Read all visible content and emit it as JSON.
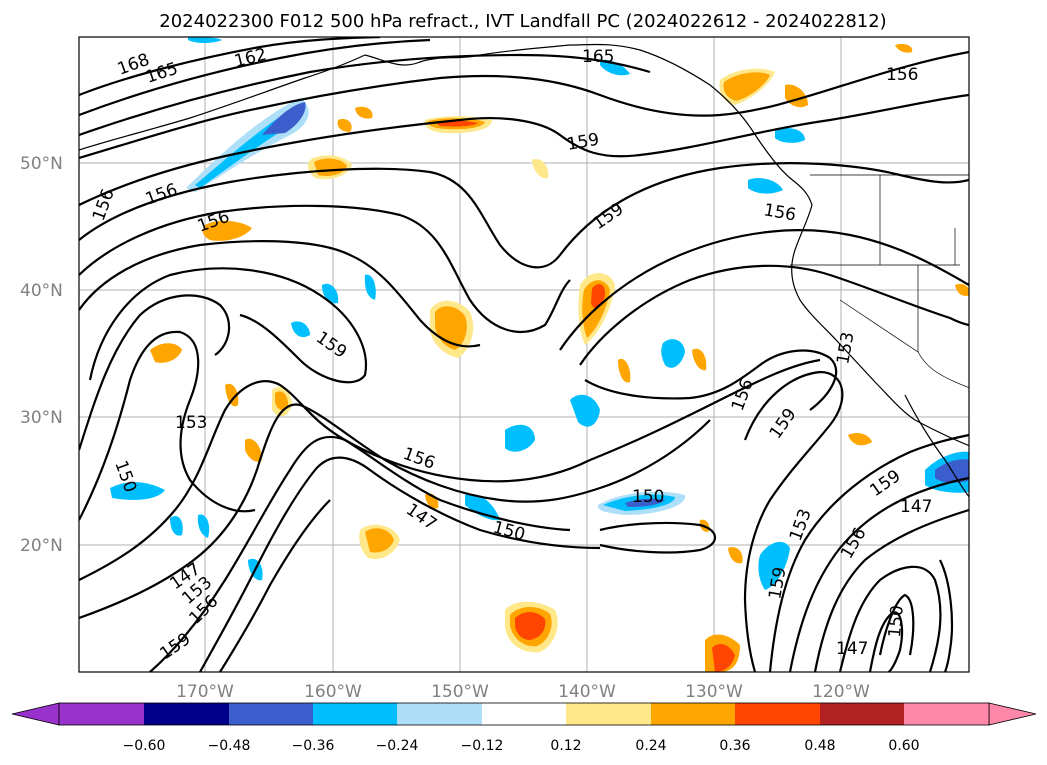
{
  "title": "2024022300 F012 500 hPa refract., IVT Landfall PC (2024022612 - 2024022812)",
  "lat_labels": [
    "50°N",
    "40°N",
    "30°N",
    "20°N"
  ],
  "lon_labels": [
    "170°W",
    "160°W",
    "150°W",
    "140°W",
    "130°W",
    "120°W"
  ],
  "colorbar": {
    "tick_labels": [
      "−0.60",
      "−0.48",
      "−0.36",
      "−0.24",
      "−0.12",
      "0.12",
      "0.24",
      "0.36",
      "0.48",
      "0.60"
    ],
    "colors": [
      "#9932CC",
      "#00008B",
      "#3A5FCD",
      "#00BFFF",
      "#ADDFF9",
      "#FFFFFF",
      "#FFE88A",
      "#FFA500",
      "#FF4500",
      "#B22222",
      "#FF88AA"
    ]
  },
  "contour_labels": [
    "168",
    "165",
    "162",
    "165",
    "156",
    "159",
    "156",
    "156",
    "156",
    "159",
    "159",
    "153",
    "150",
    "156",
    "147",
    "150",
    "150",
    "147",
    "153",
    "156",
    "159",
    "153",
    "159",
    "156",
    "159",
    "153",
    "156",
    "159",
    "147",
    "156",
    "150",
    "147"
  ],
  "colors": {
    "anomaly_positive": "#FFA500",
    "anomaly_negative": "#00BFFF"
  }
}
